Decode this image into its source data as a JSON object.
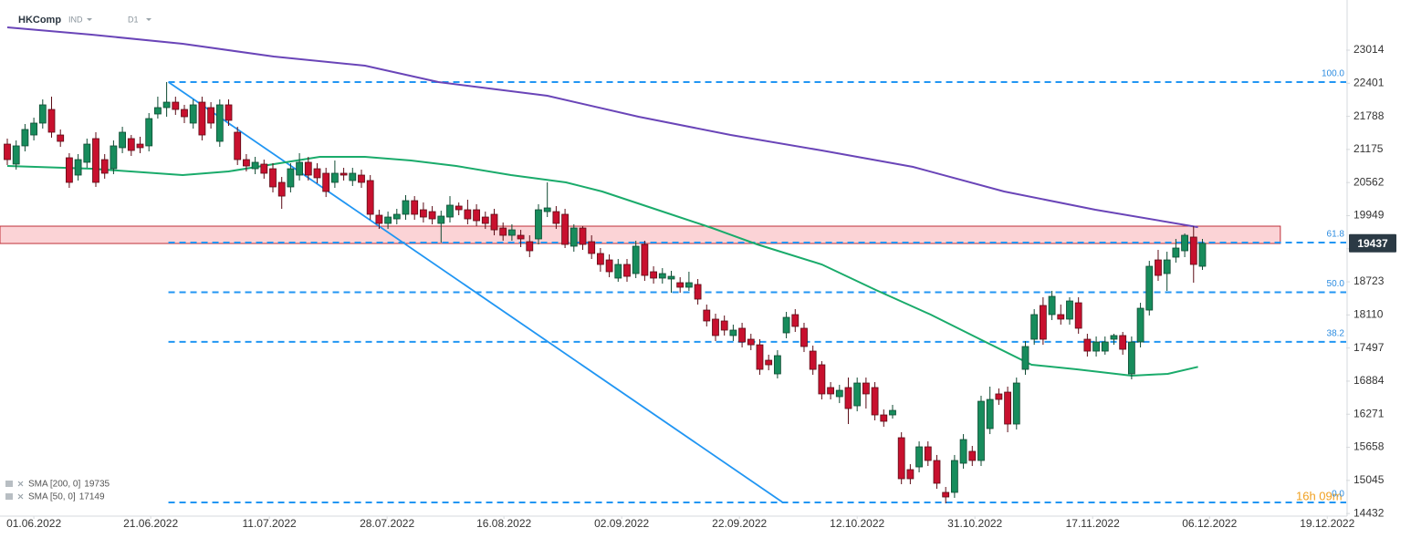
{
  "chart_data": {
    "type": "candlestick",
    "symbol": "HKComp",
    "instrument_class": "IND",
    "interval": "D1",
    "countdown": "16h 09m",
    "xlim": [
      -0.825,
      151.24
    ],
    "xticks": [
      {
        "value": 3.0,
        "label": "01.06.2022"
      },
      {
        "value": 16.2,
        "label": "21.06.2022"
      },
      {
        "value": 29.6,
        "label": "11.07.2022"
      },
      {
        "value": 42.9,
        "label": "28.07.2022"
      },
      {
        "value": 56.1,
        "label": "16.08.2022"
      },
      {
        "value": 69.4,
        "label": "02.09.2022"
      },
      {
        "value": 82.7,
        "label": "22.09.2022"
      },
      {
        "value": 96.0,
        "label": "12.10.2022"
      },
      {
        "value": 109.3,
        "label": "31.10.2022"
      },
      {
        "value": 122.6,
        "label": "17.11.2022"
      },
      {
        "value": 135.8,
        "label": "06.12.2022"
      },
      {
        "value": 149.1,
        "label": "19.12.2022"
      }
    ],
    "ylim": [
      14316,
      23943
    ],
    "yticks": [
      23014,
      22401,
      21788,
      21175,
      20562,
      19949,
      19336,
      18723,
      18110,
      17497,
      16884,
      16271,
      15658,
      15045,
      14432
    ],
    "grid": false,
    "up_color": "#178c5c",
    "down_color": "#c8102e",
    "ohlc": {
      "open": [
        21274,
        20903,
        21241,
        21443,
        21663,
        21916,
        21443,
        21021,
        20700,
        20937,
        21376,
        20987,
        20818,
        21207,
        21376,
        21274,
        21241,
        21832,
        21950,
        22051,
        21916,
        21663,
        22051,
        21950,
        21325,
        22001,
        21494,
        20987,
        20818,
        20903,
        20818,
        20565,
        20481,
        20700,
        20937,
        20818,
        20734,
        20565,
        20734,
        20599,
        20700,
        20599,
        19957,
        19805,
        19889,
        19974,
        20227,
        20058,
        20024,
        19805,
        19923,
        20126,
        20058,
        20058,
        19923,
        19974,
        19720,
        19585,
        19585,
        19467,
        19518,
        20024,
        20024,
        19974,
        19383,
        19720,
        19467,
        19248,
        19129,
        18792,
        19045,
        18876,
        19416,
        18910,
        18792,
        18775,
        18707,
        18623,
        18674,
        18200,
        18032,
        17998,
        17728,
        17863,
        17660,
        17557,
        17271,
        17018,
        17778,
        18116,
        17863,
        17440,
        17187,
        16765,
        16596,
        16765,
        16427,
        16849,
        16765,
        16258,
        16258,
        15836,
        15245,
        15295,
        15667,
        15414,
        14823,
        14823,
        15363,
        15583,
        15414,
        16005,
        16647,
        16680,
        16089,
        17102,
        17660,
        18285,
        18116,
        18116,
        18032,
        18335,
        17660,
        17440,
        17440,
        17660,
        17728,
        17018,
        17609,
        18200,
        19129,
        18876,
        19180,
        19298,
        19552,
        19011
      ],
      "high": [
        21376,
        21342,
        21646,
        21764,
        22102,
        22153,
        21545,
        21106,
        21089,
        21376,
        21494,
        21089,
        21342,
        21595,
        21443,
        21410,
        21849,
        22153,
        22423,
        22153,
        22001,
        22102,
        22153,
        22051,
        22102,
        22102,
        21595,
        21089,
        21038,
        20987,
        20920,
        20666,
        20920,
        21106,
        21038,
        20920,
        20835,
        20970,
        20835,
        20835,
        20801,
        20700,
        20058,
        20024,
        20075,
        20329,
        20311,
        20193,
        20126,
        20041,
        20311,
        20193,
        20244,
        20160,
        20024,
        20075,
        19822,
        19788,
        19686,
        19585,
        20160,
        20565,
        20126,
        20075,
        19788,
        19754,
        19585,
        19349,
        19231,
        19146,
        19146,
        19484,
        19484,
        19011,
        18977,
        18927,
        18809,
        18910,
        18775,
        18302,
        18133,
        18099,
        17930,
        17964,
        17761,
        17660,
        17373,
        17457,
        18167,
        18217,
        17964,
        17542,
        17254,
        16866,
        16815,
        16950,
        16950,
        16950,
        16866,
        16359,
        16444,
        15937,
        15346,
        15768,
        15768,
        15516,
        14924,
        15516,
        15903,
        15684,
        16613,
        16782,
        16748,
        16782,
        16950,
        17626,
        18217,
        18437,
        18555,
        18302,
        18437,
        18437,
        17761,
        17711,
        17711,
        17761,
        17795,
        17711,
        18335,
        19112,
        19315,
        19281,
        19518,
        19619,
        19754,
        19518
      ],
      "low": [
        20886,
        20801,
        21139,
        21342,
        21561,
        21393,
        21224,
        20464,
        20599,
        20835,
        20481,
        20633,
        20717,
        21106,
        21055,
        21106,
        21139,
        21747,
        21781,
        21815,
        21663,
        21561,
        21342,
        21561,
        21224,
        21612,
        20886,
        20768,
        20717,
        20633,
        20379,
        20075,
        20379,
        20599,
        20599,
        20548,
        20294,
        20464,
        20599,
        20498,
        20464,
        19872,
        19703,
        19703,
        19788,
        19872,
        19872,
        19822,
        19788,
        19450,
        19822,
        19957,
        19788,
        19754,
        19703,
        19585,
        19484,
        19484,
        19366,
        19180,
        19416,
        19923,
        19703,
        19349,
        19281,
        19315,
        19146,
        18910,
        18809,
        18724,
        18724,
        18792,
        18741,
        18690,
        18690,
        18521,
        18521,
        18555,
        18302,
        17897,
        17626,
        17728,
        17626,
        17508,
        17457,
        17001,
        17085,
        16934,
        17677,
        17795,
        17423,
        17001,
        16545,
        16545,
        16477,
        16089,
        16325,
        16376,
        16157,
        16039,
        16190,
        14975,
        14975,
        15194,
        15312,
        14890,
        14620,
        14722,
        15262,
        15312,
        15312,
        15903,
        16444,
        15937,
        15988,
        17001,
        17557,
        17557,
        18015,
        17930,
        17930,
        17761,
        17339,
        17339,
        17373,
        17557,
        17373,
        16917,
        17508,
        18099,
        18741,
        18555,
        19079,
        19180,
        18707,
        18944
      ],
      "close": [
        20987,
        21241,
        21545,
        21663,
        22001,
        21494,
        21325,
        20565,
        20987,
        21274,
        20565,
        20734,
        21241,
        21494,
        21156,
        21207,
        21747,
        21950,
        22051,
        21916,
        21781,
        22001,
        21443,
        21663,
        22001,
        21714,
        20987,
        20869,
        20937,
        20734,
        20481,
        20311,
        20818,
        20937,
        20700,
        20650,
        20396,
        20734,
        20700,
        20734,
        20565,
        19974,
        19805,
        19923,
        19974,
        20227,
        19974,
        19923,
        19889,
        19940,
        20143,
        20058,
        19889,
        19855,
        19805,
        19686,
        19585,
        19686,
        19518,
        19298,
        20058,
        20092,
        19805,
        19416,
        19720,
        19416,
        19248,
        19045,
        18910,
        19045,
        18825,
        19383,
        18842,
        18792,
        18876,
        18825,
        18623,
        18707,
        18403,
        17998,
        17728,
        17829,
        17829,
        17609,
        17557,
        17102,
        17187,
        17356,
        18065,
        17897,
        17525,
        17102,
        16647,
        16647,
        16714,
        16376,
        16849,
        16647,
        16258,
        16140,
        16342,
        15076,
        15076,
        15667,
        15414,
        14992,
        14738,
        15414,
        15802,
        15414,
        16511,
        16545,
        16545,
        16089,
        16849,
        17525,
        18116,
        17660,
        18454,
        18032,
        18369,
        17863,
        17440,
        17609,
        17609,
        17728,
        17474,
        17609,
        18234,
        19011,
        18842,
        19129,
        19349,
        19585,
        19045,
        19437
      ]
    },
    "series": [
      {
        "name": "SMA [200, 0]",
        "label_value": 19735,
        "color": "#6a45b8",
        "x": [
          0,
          9.5,
          19.8,
          30.1,
          40.4,
          48.7,
          61,
          71.3,
          81.7,
          92,
          102.3,
          112.6,
          122.9,
          134.5
        ],
        "values": [
          23436,
          23301,
          23132,
          22896,
          22727,
          22423,
          22170,
          21781,
          21443,
          21156,
          20852,
          20396,
          20058,
          19735
        ]
      },
      {
        "name": "SMA [50, 0]",
        "label_value": 17149,
        "color": "#1aab6b",
        "x": [
          0,
          9.5,
          19.8,
          25,
          30.1,
          35.3,
          40.4,
          45.6,
          50.7,
          56.9,
          63.1,
          67.2,
          73.4,
          79.6,
          84.7,
          92,
          98.1,
          104.3,
          110.5,
          115.7,
          120.8,
          127,
          131.1,
          134.5
        ],
        "values": [
          20869,
          20818,
          20700,
          20768,
          20903,
          21038,
          21038,
          20970,
          20869,
          20700,
          20565,
          20396,
          20058,
          19720,
          19416,
          19045,
          18572,
          18116,
          17609,
          17187,
          17102,
          16984,
          17018,
          17149
        ]
      }
    ],
    "fib_start": 18.2,
    "fib_levels": [
      {
        "value": 22423,
        "label": "100.0"
      },
      {
        "value": 19450,
        "label": "61.8"
      },
      {
        "value": 18530,
        "label": "50.0"
      },
      {
        "value": 17611,
        "label": "38.2"
      },
      {
        "value": 14637,
        "label": "0.0"
      }
    ],
    "fib_color": "#2196f3",
    "zone": {
      "low": 19433,
      "high": 19754,
      "x_end": 143.8,
      "color": "#fbd3d6",
      "border": "#c0303a"
    },
    "trendline": {
      "x": [
        18.2,
        87.6
      ],
      "values": [
        22423,
        14637
      ],
      "color": "#2196f3"
    }
  }
}
